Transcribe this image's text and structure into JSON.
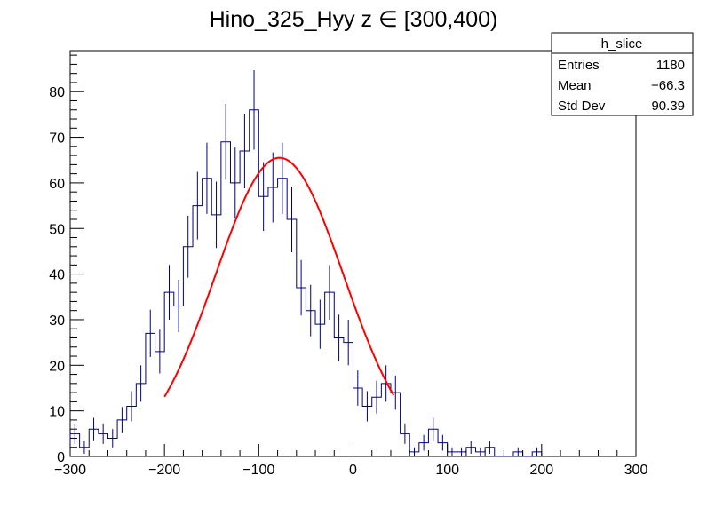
{
  "chart_data": {
    "type": "histogram",
    "title": "Hino_325_Hyy z  ∈ [300,400)",
    "xlabel": "",
    "ylabel": "",
    "xlim": [
      -300,
      300
    ],
    "ylim": [
      0,
      89
    ],
    "bin_width": 10,
    "bin_edges_start": -300,
    "x_ticks": [
      "−300",
      "−200",
      "−100",
      "0",
      "100",
      "200",
      "300"
    ],
    "x_tick_values": [
      -300,
      -200,
      -100,
      0,
      100,
      200,
      300
    ],
    "y_ticks": [
      "0",
      "10",
      "20",
      "30",
      "40",
      "50",
      "60",
      "70",
      "80"
    ],
    "y_tick_values": [
      0,
      10,
      20,
      30,
      40,
      50,
      60,
      70,
      80
    ],
    "counts": [
      5,
      2,
      6,
      5,
      4,
      8,
      11,
      16,
      27,
      23,
      36,
      33,
      46,
      55,
      61,
      53,
      69,
      60,
      67,
      76,
      57,
      59,
      61,
      52,
      37,
      32,
      29,
      36,
      26,
      25,
      15,
      11,
      13,
      16,
      14,
      5,
      1,
      3,
      6,
      3,
      1,
      1,
      2,
      1,
      2,
      0,
      0,
      1,
      0,
      1
    ],
    "hist_color": "#00007f",
    "fit": {
      "function": "gaussian",
      "color": "#ff0000",
      "range": [
        -200,
        43
      ],
      "amplitude": 65.5,
      "mean": -78,
      "sigma": 68
    },
    "stats": {
      "name": "h_slice",
      "rows": [
        {
          "label": "Entries",
          "value": "1180"
        },
        {
          "label": "Mean",
          "value": "−66.3"
        },
        {
          "label": "Std Dev",
          "value": "90.39"
        }
      ]
    }
  }
}
